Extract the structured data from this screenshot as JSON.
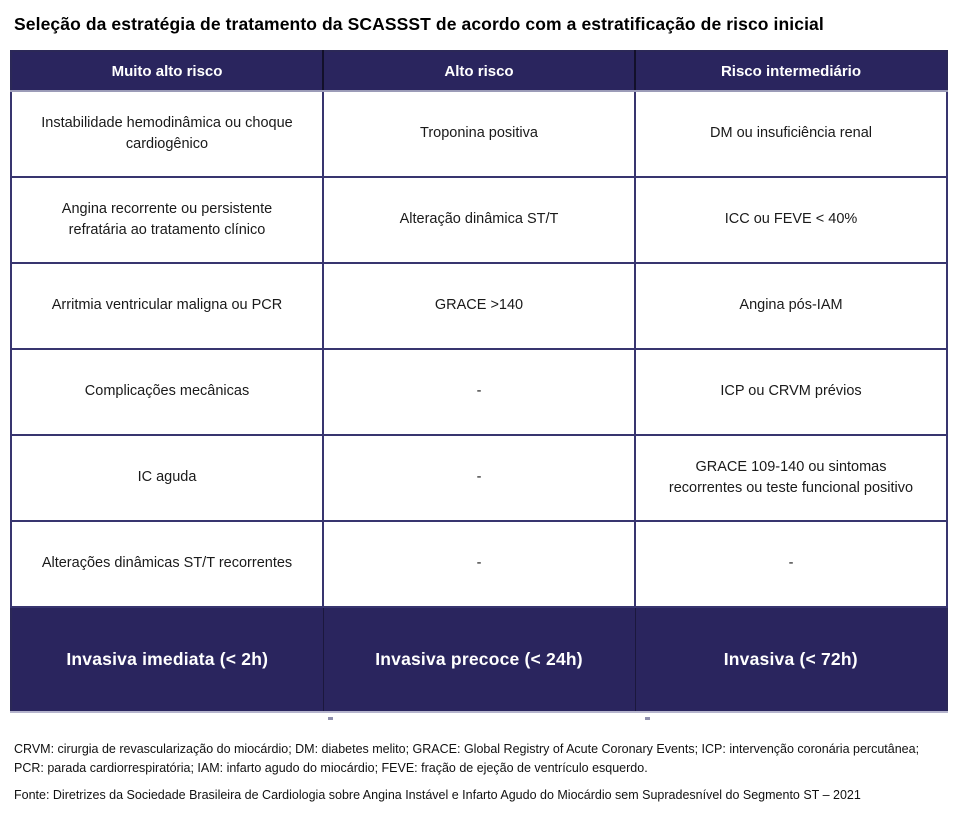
{
  "title": "Seleção da estratégia de tratamento da SCASSST de acordo com a estratificação de risco inicial",
  "table": {
    "headers": [
      "Muito alto risco",
      "Alto risco",
      "Risco intermediário"
    ],
    "rows": [
      [
        "Instabilidade hemodinâmica ou choque cardiogênico",
        "Troponina positiva",
        "DM ou insuficiência renal"
      ],
      [
        "Angina recorrente ou persistente refratária ao tratamento clínico",
        "Alteração dinâmica ST/T",
        "ICC ou FEVE < 40%"
      ],
      [
        "Arritmia ventricular maligna ou PCR",
        "GRACE >140",
        "Angina pós-IAM"
      ],
      [
        "Complicações mecânicas",
        "-",
        "ICP ou CRVM prévios"
      ],
      [
        "IC aguda",
        "-",
        "GRACE 109-140 ou sintomas recorrentes ou teste funcional positivo"
      ],
      [
        "Alterações dinâmicas ST/T recorrentes",
        "-",
        "-"
      ]
    ],
    "strategies": [
      "Invasiva imediata (< 2h)",
      "Invasiva precoce (< 24h)",
      "Invasiva (< 72h)"
    ]
  },
  "footnotes": {
    "abbreviations": "CRVM: cirurgia de revascularização do miocárdio; DM: diabetes melito; GRACE: Global Registry of Acute Coronary Events; ICP: intervenção coronária percutânea; PCR: parada cardiorrespiratória; IAM: infarto agudo do miocárdio; FEVE: fração de ejeção de ventrículo esquerdo.",
    "source": "Fonte: Diretrizes da Sociedade Brasileira de Cardiologia sobre Angina Instável e Infarto Agudo do Miocárdio sem Supradesnível do Segmento ST – 2021"
  },
  "colors": {
    "navy": "#2a255e",
    "border": "#38356f",
    "header_text": "#ffffff",
    "body_text": "#1a1a1a"
  }
}
